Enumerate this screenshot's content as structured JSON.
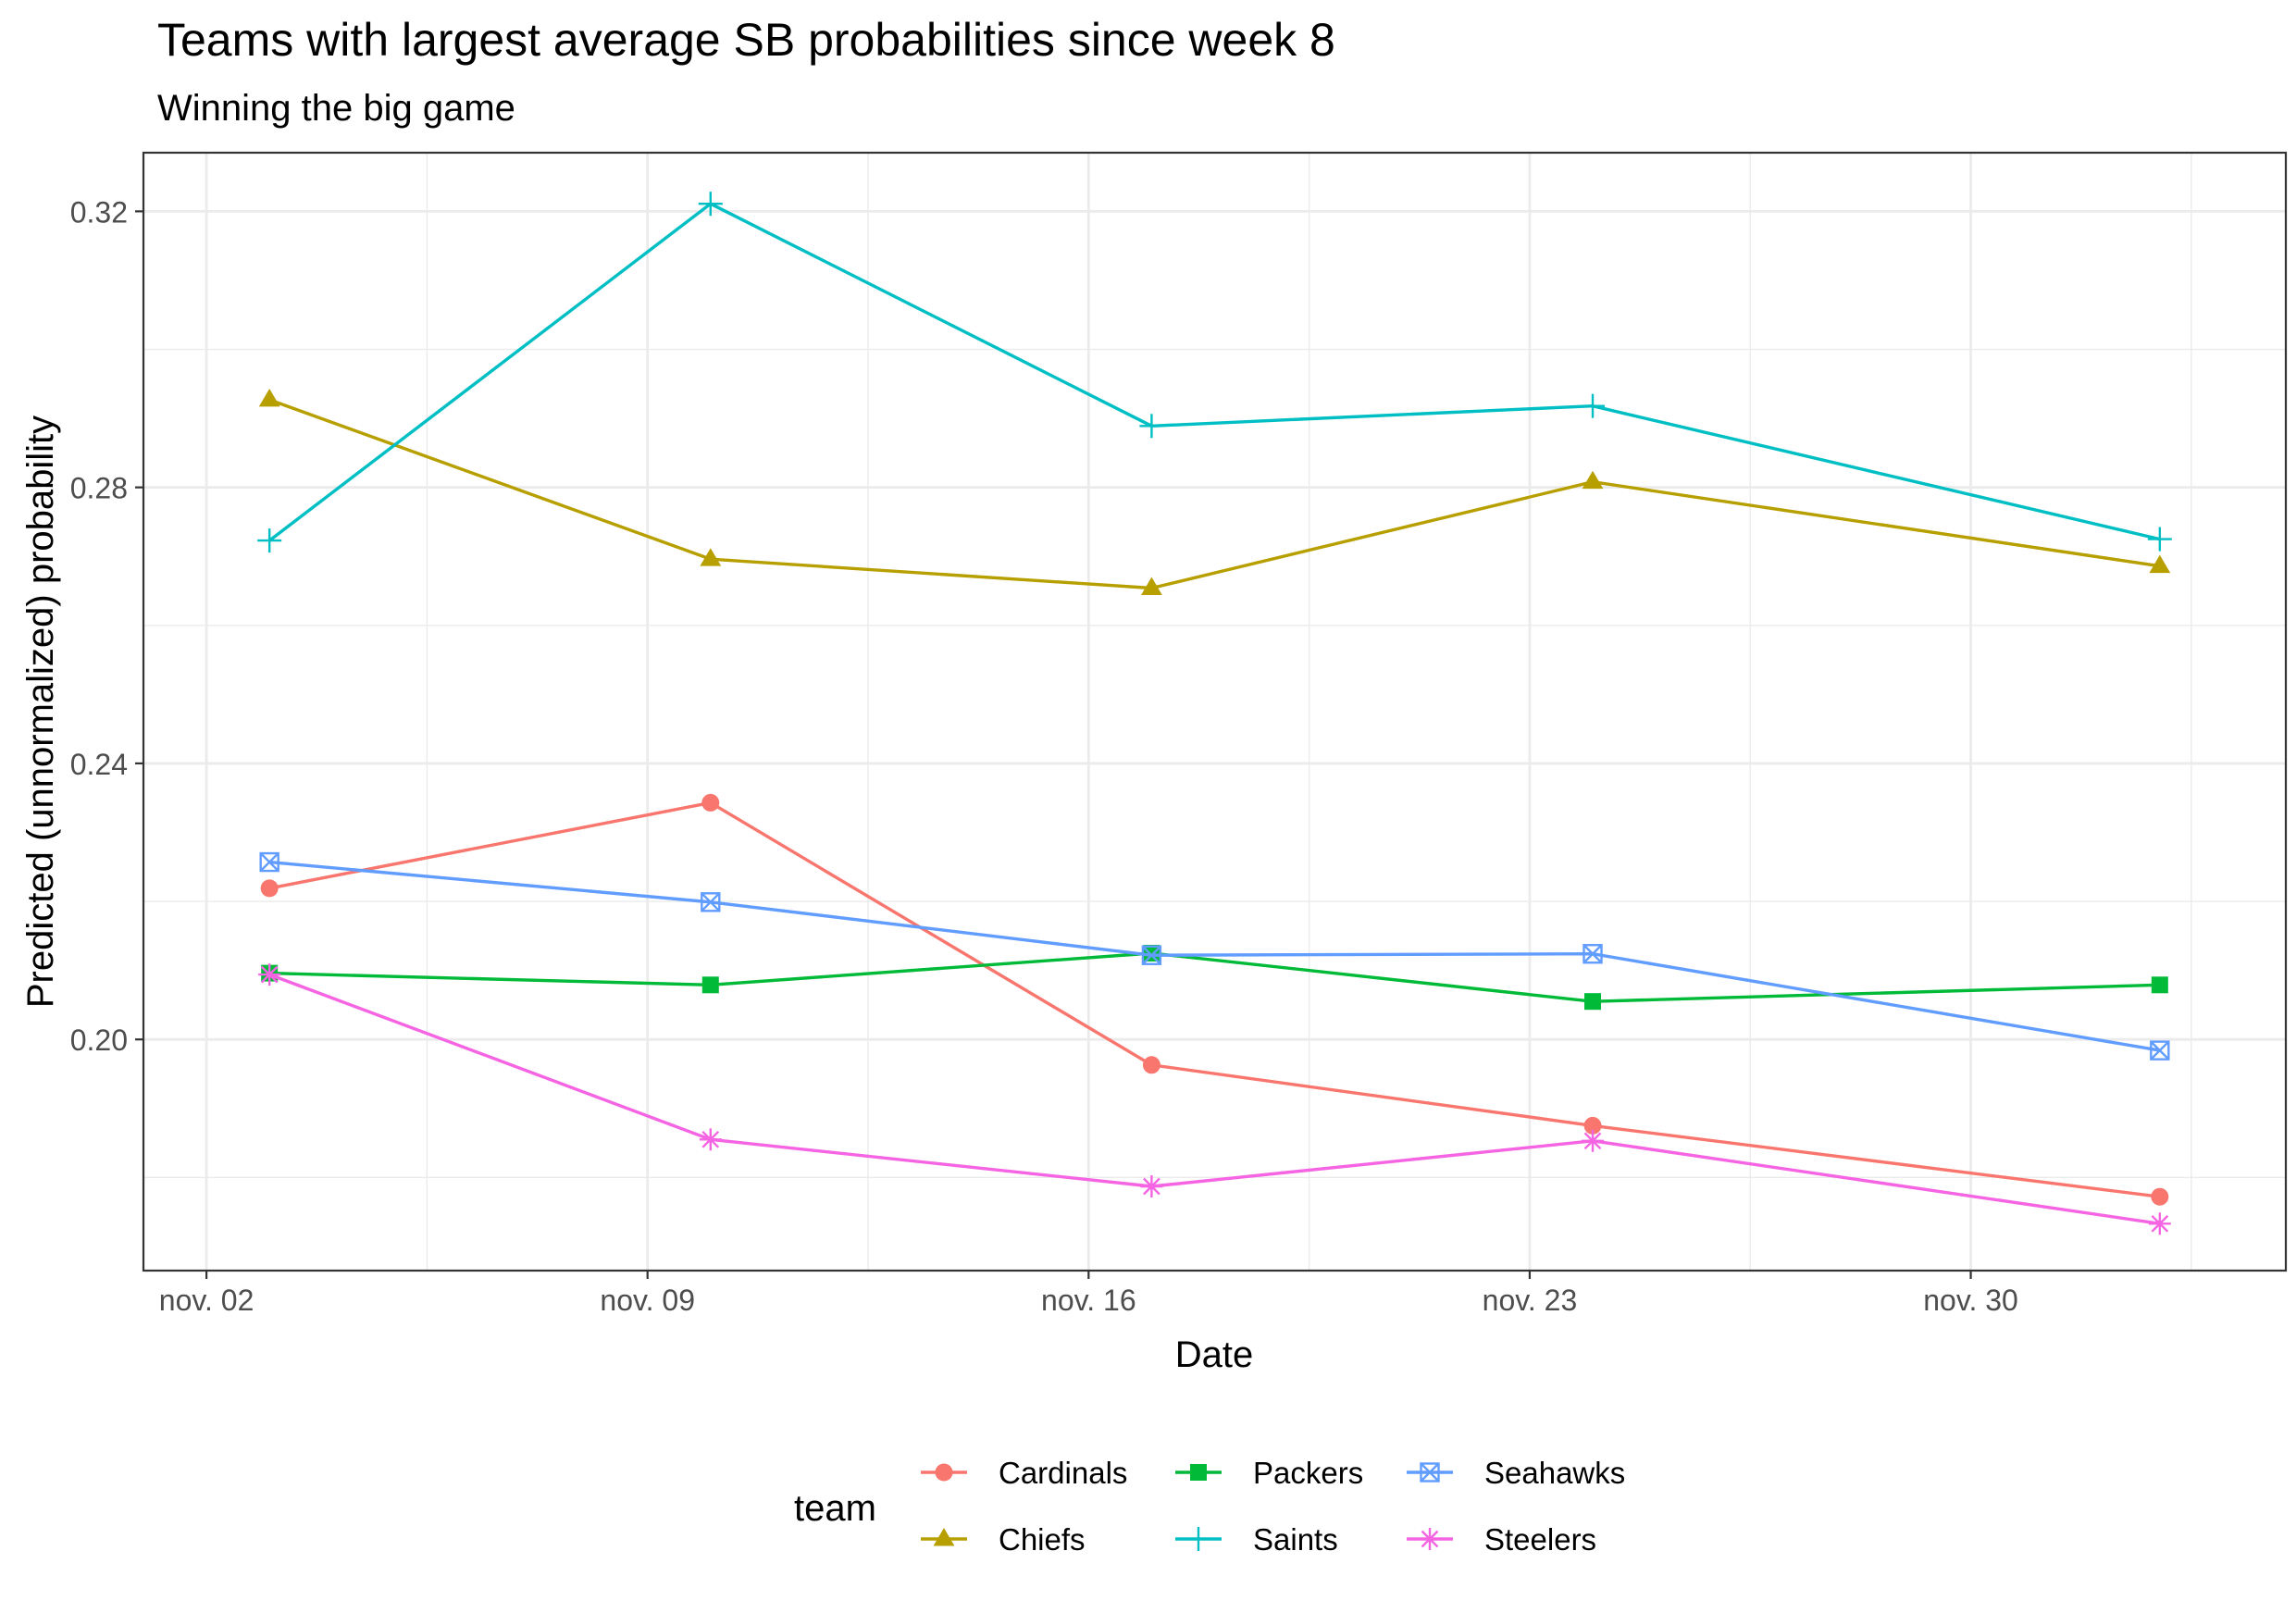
{
  "chart_data": {
    "type": "line",
    "title": "Teams with largest average SB probabilities since week 8",
    "subtitle": "Winning the big game",
    "xlabel": "Date",
    "ylabel": "Predicted (unnormalized) probability",
    "x": [
      "2020-11-03",
      "2020-11-10",
      "2020-11-17",
      "2020-11-24",
      "2020-12-03"
    ],
    "xlim": [
      "2020-11-01",
      "2020-12-05"
    ],
    "ylim": [
      0.1665,
      0.3285
    ],
    "x_ticks": [
      {
        "date": "2020-11-02",
        "label": "nov. 02"
      },
      {
        "date": "2020-11-09",
        "label": "nov. 09"
      },
      {
        "date": "2020-11-16",
        "label": "nov. 16"
      },
      {
        "date": "2020-11-23",
        "label": "nov. 23"
      },
      {
        "date": "2020-11-30",
        "label": "nov. 30"
      }
    ],
    "y_ticks": [
      {
        "value": 0.2,
        "label": "0.20"
      },
      {
        "value": 0.24,
        "label": "0.24"
      },
      {
        "value": 0.28,
        "label": "0.28"
      },
      {
        "value": 0.32,
        "label": "0.32"
      }
    ],
    "grid": true,
    "legend": {
      "title": "team",
      "position": "bottom",
      "columns": 3
    },
    "series": [
      {
        "name": "Cardinals",
        "color": "#F8766D",
        "shape": "circle",
        "values": [
          0.2219,
          0.2343,
          0.1963,
          0.1875,
          0.1772
        ]
      },
      {
        "name": "Chiefs",
        "color": "#B79F00",
        "shape": "triangle",
        "values": [
          0.2927,
          0.2696,
          0.2654,
          0.2808,
          0.2686
        ]
      },
      {
        "name": "Packers",
        "color": "#00BA38",
        "shape": "square",
        "values": [
          0.2096,
          0.2079,
          0.2125,
          0.2055,
          0.2079
        ]
      },
      {
        "name": "Saints",
        "color": "#00BFC4",
        "shape": "plus",
        "values": [
          0.2723,
          0.3211,
          0.2889,
          0.2918,
          0.2725
        ]
      },
      {
        "name": "Seahawks",
        "color": "#619CFF",
        "shape": "square-x",
        "values": [
          0.2257,
          0.2199,
          0.2122,
          0.2124,
          0.1984
        ]
      },
      {
        "name": "Steelers",
        "color": "#F564E3",
        "shape": "asterisk",
        "values": [
          0.2094,
          0.1855,
          0.1787,
          0.1853,
          0.1733
        ]
      }
    ]
  }
}
